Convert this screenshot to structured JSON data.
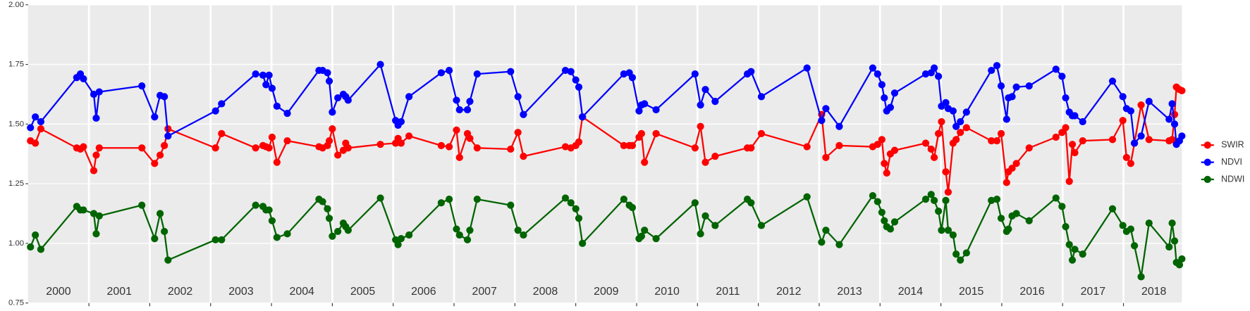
{
  "chart_data": {
    "type": "line",
    "x": [
      2000.04,
      2000.12,
      2000.21,
      2000.8,
      2000.86,
      2000.91,
      2001.08,
      2001.12,
      2001.17,
      2001.87,
      2002.08,
      2002.17,
      2002.24,
      2002.3,
      2003.08,
      2003.18,
      2003.74,
      2003.86,
      2003.91,
      2003.96,
      2004.01,
      2004.09,
      2004.26,
      2004.78,
      2004.84,
      2004.92,
      2004.95,
      2005.0,
      2005.09,
      2005.18,
      2005.22,
      2005.26,
      2005.79,
      2006.04,
      2006.08,
      2006.13,
      2006.26,
      2006.79,
      2006.92,
      2007.04,
      2007.09,
      2007.22,
      2007.26,
      2007.38,
      2007.93,
      2008.05,
      2008.14,
      2008.83,
      2008.92,
      2009.0,
      2009.05,
      2009.11,
      2009.79,
      2009.88,
      2009.93,
      2010.04,
      2010.08,
      2010.13,
      2010.32,
      2010.96,
      2011.05,
      2011.13,
      2011.29,
      2011.82,
      2011.88,
      2012.05,
      2012.8,
      2013.04,
      2013.11,
      2013.33,
      2013.88,
      2013.96,
      2014.03,
      2014.07,
      2014.11,
      2014.17,
      2014.24,
      2014.75,
      2014.84,
      2014.89,
      2014.96,
      2015.01,
      2015.08,
      2015.12,
      2015.2,
      2015.25,
      2015.32,
      2015.42,
      2015.83,
      2015.92,
      2015.99,
      2016.08,
      2016.11,
      2016.17,
      2016.24,
      2016.45,
      2016.89,
      2016.99,
      2017.05,
      2017.11,
      2017.16,
      2017.2,
      2017.33,
      2017.82,
      2017.99,
      2018.05,
      2018.12,
      2018.18,
      2018.29,
      2018.42,
      2018.75,
      2018.8,
      2018.84,
      2018.87,
      2018.92,
      2018.96
    ],
    "series": [
      {
        "name": "SWIR",
        "color": "#ff0000",
        "values": [
          1.43,
          1.42,
          1.48,
          1.4,
          1.395,
          1.405,
          1.305,
          1.37,
          1.4,
          1.4,
          1.335,
          1.37,
          1.41,
          1.48,
          1.4,
          1.46,
          1.4,
          1.41,
          1.405,
          1.4,
          1.445,
          1.34,
          1.43,
          1.405,
          1.4,
          1.41,
          1.43,
          1.48,
          1.37,
          1.39,
          1.42,
          1.4,
          1.415,
          1.42,
          1.44,
          1.42,
          1.45,
          1.41,
          1.405,
          1.475,
          1.36,
          1.46,
          1.44,
          1.4,
          1.395,
          1.465,
          1.365,
          1.405,
          1.4,
          1.41,
          1.425,
          1.53,
          1.41,
          1.41,
          1.41,
          1.445,
          1.46,
          1.34,
          1.46,
          1.4,
          1.49,
          1.34,
          1.365,
          1.4,
          1.4,
          1.46,
          1.405,
          1.54,
          1.36,
          1.41,
          1.405,
          1.415,
          1.435,
          1.335,
          1.295,
          1.375,
          1.39,
          1.42,
          1.395,
          1.36,
          1.46,
          1.51,
          1.3,
          1.215,
          1.42,
          1.435,
          1.465,
          1.485,
          1.43,
          1.43,
          1.46,
          1.255,
          1.3,
          1.315,
          1.335,
          1.4,
          1.445,
          1.465,
          1.485,
          1.26,
          1.415,
          1.38,
          1.43,
          1.435,
          1.515,
          1.36,
          1.335,
          1.42,
          1.58,
          1.435,
          1.43,
          1.435,
          1.54,
          1.655,
          1.645,
          1.64
        ]
      },
      {
        "name": "NDVI",
        "color": "#0000ff",
        "values": [
          1.485,
          1.53,
          1.51,
          1.695,
          1.71,
          1.69,
          1.625,
          1.525,
          1.635,
          1.66,
          1.53,
          1.62,
          1.615,
          1.45,
          1.555,
          1.585,
          1.71,
          1.705,
          1.665,
          1.705,
          1.65,
          1.575,
          1.545,
          1.725,
          1.725,
          1.715,
          1.68,
          1.55,
          1.61,
          1.625,
          1.615,
          1.6,
          1.75,
          1.515,
          1.495,
          1.51,
          1.615,
          1.715,
          1.725,
          1.6,
          1.56,
          1.56,
          1.595,
          1.71,
          1.72,
          1.615,
          1.54,
          1.725,
          1.72,
          1.685,
          1.655,
          1.53,
          1.71,
          1.715,
          1.695,
          1.555,
          1.58,
          1.585,
          1.56,
          1.71,
          1.58,
          1.645,
          1.595,
          1.71,
          1.72,
          1.615,
          1.735,
          1.515,
          1.565,
          1.49,
          1.735,
          1.71,
          1.665,
          1.61,
          1.555,
          1.57,
          1.63,
          1.71,
          1.715,
          1.735,
          1.7,
          1.575,
          1.59,
          1.565,
          1.555,
          1.49,
          1.51,
          1.55,
          1.725,
          1.745,
          1.66,
          1.52,
          1.61,
          1.615,
          1.655,
          1.66,
          1.73,
          1.7,
          1.61,
          1.55,
          1.535,
          1.535,
          1.51,
          1.68,
          1.615,
          1.565,
          1.555,
          1.42,
          1.45,
          1.595,
          1.52,
          1.585,
          1.5,
          1.415,
          1.43,
          1.45
        ]
      },
      {
        "name": "NDWI",
        "color": "#006400",
        "values": [
          0.985,
          1.035,
          0.975,
          1.155,
          1.14,
          1.14,
          1.125,
          1.04,
          1.115,
          1.16,
          1.02,
          1.125,
          1.05,
          0.93,
          1.015,
          1.015,
          1.16,
          1.155,
          1.14,
          1.14,
          1.095,
          1.025,
          1.04,
          1.185,
          1.175,
          1.145,
          1.105,
          1.03,
          1.05,
          1.085,
          1.07,
          1.055,
          1.19,
          1.015,
          0.995,
          1.02,
          1.035,
          1.17,
          1.185,
          1.06,
          1.035,
          1.015,
          1.055,
          1.185,
          1.16,
          1.055,
          1.035,
          1.19,
          1.17,
          1.145,
          1.105,
          1.0,
          1.185,
          1.16,
          1.15,
          1.02,
          1.03,
          1.055,
          1.02,
          1.17,
          1.04,
          1.115,
          1.075,
          1.185,
          1.17,
          1.075,
          1.195,
          1.005,
          1.055,
          0.995,
          1.2,
          1.175,
          1.13,
          1.095,
          1.07,
          1.06,
          1.09,
          1.185,
          1.205,
          1.18,
          1.135,
          1.055,
          1.18,
          1.055,
          1.035,
          0.955,
          0.93,
          0.96,
          1.18,
          1.185,
          1.105,
          1.05,
          1.06,
          1.115,
          1.125,
          1.095,
          1.19,
          1.155,
          1.07,
          0.995,
          0.93,
          0.975,
          0.955,
          1.145,
          1.075,
          1.05,
          1.06,
          0.99,
          0.86,
          1.085,
          0.985,
          1.085,
          1.01,
          0.92,
          0.91,
          0.935
        ]
      }
    ],
    "xlim": [
      2000,
      2018.96
    ],
    "xticks": [
      2001,
      2002,
      2003,
      2004,
      2005,
      2006,
      2007,
      2008,
      2009,
      2010,
      2011,
      2012,
      2013,
      2014,
      2015,
      2016,
      2017,
      2018
    ],
    "year_labels": [
      2000,
      2001,
      2002,
      2003,
      2004,
      2005,
      2006,
      2007,
      2008,
      2009,
      2010,
      2011,
      2012,
      2013,
      2014,
      2015,
      2016,
      2017,
      2018
    ],
    "ylim": [
      0.75,
      2.0
    ],
    "yticks": [
      {
        "value": 0.75,
        "label": "0.75"
      },
      {
        "value": 1,
        "label": "1.00"
      },
      {
        "value": 1.25,
        "label": "1.25"
      },
      {
        "value": 1.5,
        "label": "1.50"
      },
      {
        "value": 1.75,
        "label": "1.75"
      },
      {
        "value": 2,
        "label": "2.00"
      }
    ],
    "grid": true,
    "legend": "right"
  }
}
